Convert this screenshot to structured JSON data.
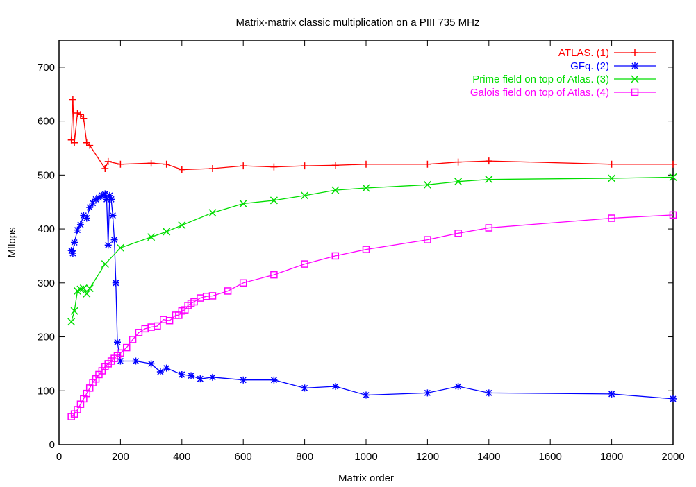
{
  "chart_data": {
    "type": "line",
    "title": "Matrix-matrix classic multiplication on a PIII 735 MHz",
    "xlabel": "Matrix order",
    "ylabel": "Mflops",
    "xlim": [
      0,
      2000
    ],
    "ylim": [
      0,
      750
    ],
    "xticks": [
      0,
      200,
      400,
      600,
      800,
      1000,
      1200,
      1400,
      1600,
      1800,
      2000
    ],
    "yticks": [
      0,
      100,
      200,
      300,
      400,
      500,
      600,
      700
    ],
    "grid": false,
    "legend_position": "top-right",
    "series": [
      {
        "name": "ATLAS. (1)",
        "color": "#ff0000",
        "marker": "plus",
        "x": [
          40,
          45,
          50,
          60,
          70,
          80,
          90,
          100,
          150,
          160,
          200,
          300,
          350,
          400,
          500,
          600,
          700,
          800,
          900,
          1000,
          1200,
          1300,
          1400,
          1800,
          2000
        ],
        "y": [
          565,
          640,
          560,
          615,
          612,
          605,
          560,
          555,
          512,
          525,
          520,
          522,
          520,
          510,
          512,
          517,
          515,
          517,
          518,
          520,
          520,
          524,
          526,
          520,
          520
        ]
      },
      {
        "name": "GFq. (2)",
        "color": "#0000ff",
        "marker": "star",
        "x": [
          40,
          45,
          50,
          60,
          70,
          80,
          90,
          100,
          110,
          120,
          130,
          140,
          150,
          155,
          160,
          165,
          170,
          175,
          180,
          185,
          190,
          200,
          250,
          300,
          330,
          350,
          400,
          430,
          460,
          500,
          600,
          700,
          800,
          900,
          1000,
          1200,
          1300,
          1400,
          1800,
          2000
        ],
        "y": [
          360,
          355,
          375,
          398,
          408,
          425,
          420,
          440,
          448,
          455,
          458,
          462,
          465,
          455,
          370,
          462,
          455,
          425,
          380,
          300,
          190,
          155,
          155,
          150,
          135,
          142,
          130,
          128,
          122,
          125,
          120,
          120,
          105,
          108,
          92,
          96,
          108,
          96,
          94,
          85
        ]
      },
      {
        "name": "Prime field on top of Atlas. (3)",
        "color": "#00dd00",
        "marker": "cross",
        "x": [
          40,
          50,
          60,
          70,
          80,
          90,
          100,
          150,
          200,
          300,
          350,
          400,
          500,
          600,
          700,
          800,
          900,
          1000,
          1200,
          1300,
          1400,
          1800,
          2000
        ],
        "y": [
          228,
          248,
          285,
          288,
          290,
          280,
          290,
          335,
          365,
          385,
          395,
          407,
          430,
          447,
          453,
          462,
          472,
          476,
          482,
          488,
          492,
          494,
          496
        ]
      },
      {
        "name": "Galois field on top of Atlas. (4)",
        "color": "#ff00ff",
        "marker": "square",
        "x": [
          40,
          50,
          60,
          70,
          80,
          90,
          100,
          110,
          120,
          130,
          140,
          150,
          160,
          170,
          180,
          190,
          200,
          220,
          240,
          260,
          280,
          300,
          320,
          340,
          360,
          380,
          390,
          400,
          410,
          420,
          430,
          440,
          460,
          480,
          500,
          550,
          600,
          700,
          800,
          900,
          1000,
          1200,
          1300,
          1400,
          1800,
          2000
        ],
        "y": [
          52,
          57,
          65,
          75,
          85,
          95,
          105,
          115,
          122,
          130,
          137,
          145,
          150,
          155,
          160,
          165,
          170,
          180,
          195,
          208,
          215,
          218,
          220,
          232,
          230,
          240,
          240,
          248,
          250,
          258,
          262,
          265,
          272,
          275,
          276,
          285,
          300,
          315,
          335,
          350,
          362,
          380,
          392,
          402,
          420,
          426
        ]
      }
    ]
  }
}
